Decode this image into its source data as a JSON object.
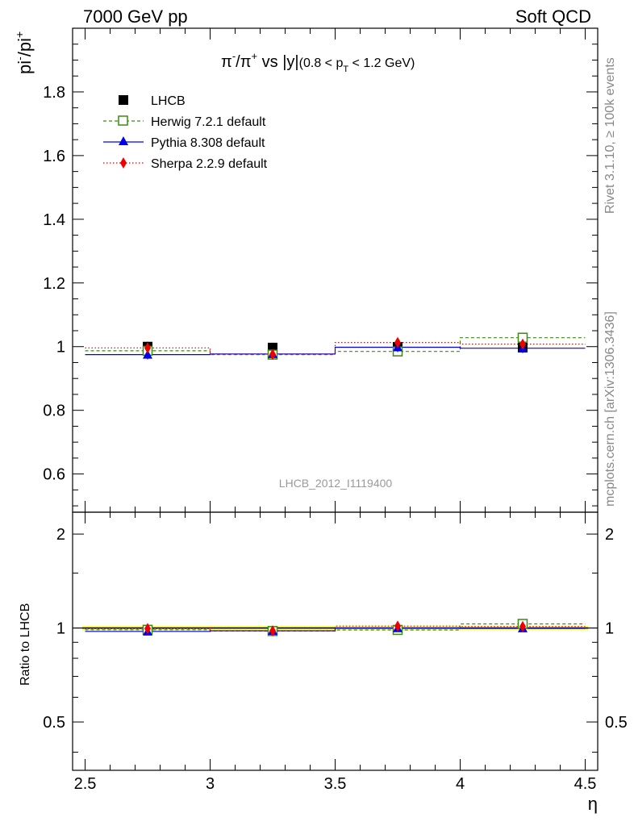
{
  "header": {
    "left_label": "7000 GeV pp",
    "right_label": "Soft QCD"
  },
  "side_labels": {
    "rivet": "Rivet 3.1.10, ≥ 100k events",
    "source": "mcplots.cern.ch [arXiv:1306.3436]"
  },
  "colors": {
    "LHCB": "#000000",
    "Herwig": "#3a8a12",
    "Pythia": "#0000ee",
    "Sherpa": "#ee0000",
    "band_outer": "#ffff66",
    "band_inner": "#66dd33",
    "watermark": "#999999"
  },
  "chart_data": [
    {
      "type": "line",
      "panel": "main",
      "title": "π⁻/π⁺ vs |y| (0.8 < pT < 1.2 GeV)",
      "title_parts": {
        "ratio_base": "π",
        "num_sup": "-",
        "slash": "/",
        "den_sup": "+",
        "vs": " vs |y|",
        "range_pre": "(0.8 < p",
        "range_sub": "T",
        "range_post": " < 1.2 GeV)"
      },
      "ylabel": "pi⁻/pi⁺",
      "ylabel_parts": {
        "base": "pi",
        "sup1": "-",
        "slash": "/pi",
        "sup2": "+"
      },
      "watermark": "LHCB_2012_I1119400",
      "x": [
        2.75,
        3.25,
        3.75,
        4.25
      ],
      "xlim": [
        2.45,
        4.55
      ],
      "ylim": [
        0.48,
        2.0
      ],
      "y_ticks": [
        0.6,
        0.8,
        1,
        1.2,
        1.4,
        1.6,
        1.8
      ],
      "y_tick_labels": [
        "0.6",
        "0.8",
        "1",
        "1.2",
        "1.4",
        "1.6",
        "1.8"
      ],
      "legend_position": "top-left",
      "series": [
        {
          "name": "LHCB",
          "values": [
            1.0,
            0.997,
            0.999,
            0.997
          ],
          "marker": "square-filled",
          "line": "none"
        },
        {
          "name": "Herwig 7.2.1 default",
          "values": [
            0.987,
            0.975,
            0.985,
            1.028
          ],
          "marker": "square-open",
          "line": "dashed"
        },
        {
          "name": "Pythia 8.308 default",
          "values": [
            0.975,
            0.977,
            0.998,
            0.995
          ],
          "marker": "triangle",
          "line": "solid"
        },
        {
          "name": "Sherpa 2.2.9 default",
          "values": [
            0.996,
            0.976,
            1.013,
            1.008
          ],
          "marker": "diamond",
          "line": "dotted"
        }
      ]
    },
    {
      "type": "line",
      "panel": "ratio",
      "ylabel": "Ratio to LHCB",
      "xlabel": "η",
      "x": [
        2.75,
        3.25,
        3.75,
        4.25
      ],
      "xlim": [
        2.45,
        4.55
      ],
      "ylim": [
        0.35,
        2.35
      ],
      "scale": "log",
      "y_ticks": [
        0.5,
        1,
        2
      ],
      "y_tick_labels": [
        "0.5",
        "1",
        "2"
      ],
      "x_ticks": [
        2.5,
        3,
        3.5,
        4,
        4.5
      ],
      "x_tick_labels": [
        "2.5",
        "3",
        "3.5",
        "4",
        "4.5"
      ],
      "series": [
        {
          "name": "Herwig 7.2.1 default",
          "values": [
            0.987,
            0.978,
            0.986,
            1.031
          ]
        },
        {
          "name": "Pythia 8.308 default",
          "values": [
            0.975,
            0.98,
            0.999,
            0.998
          ]
        },
        {
          "name": "Sherpa 2.2.9 default",
          "values": [
            0.996,
            0.979,
            1.014,
            1.011
          ]
        }
      ]
    }
  ]
}
